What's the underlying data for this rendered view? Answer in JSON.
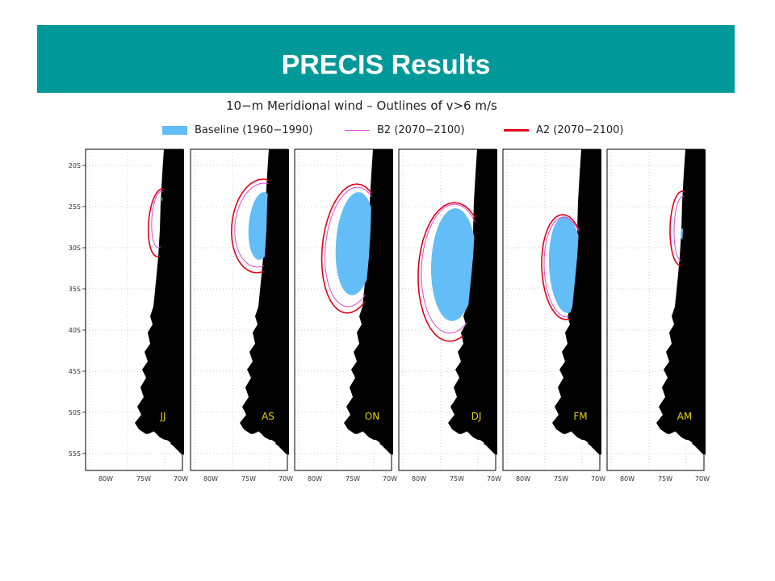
{
  "slide": {
    "title": "PRECIS Results",
    "banner_color": "#009999"
  },
  "chart_data": {
    "type": "map",
    "title": "10−m Meridional wind – Outlines of v>6 m/s",
    "legend": [
      {
        "label": "Baseline (1960−1990)",
        "style": "fill",
        "color": "#63bdf6"
      },
      {
        "label": "B2 (2070−2100)",
        "style": "thin-line",
        "color": "#d94ad9"
      },
      {
        "label": "A2 (2070−2100)",
        "style": "thick-line",
        "color": "#e2001a"
      }
    ],
    "lat_ticks": [
      "20S",
      "25S",
      "30S",
      "35S",
      "40S",
      "45S",
      "50S",
      "55S"
    ],
    "lon_ticks": [
      "80W",
      "75W",
      "70W"
    ],
    "panels": [
      "JJ",
      "AS",
      "ON",
      "DJ",
      "FM",
      "AM"
    ],
    "land_color": "#000000",
    "grid": "dotted"
  }
}
